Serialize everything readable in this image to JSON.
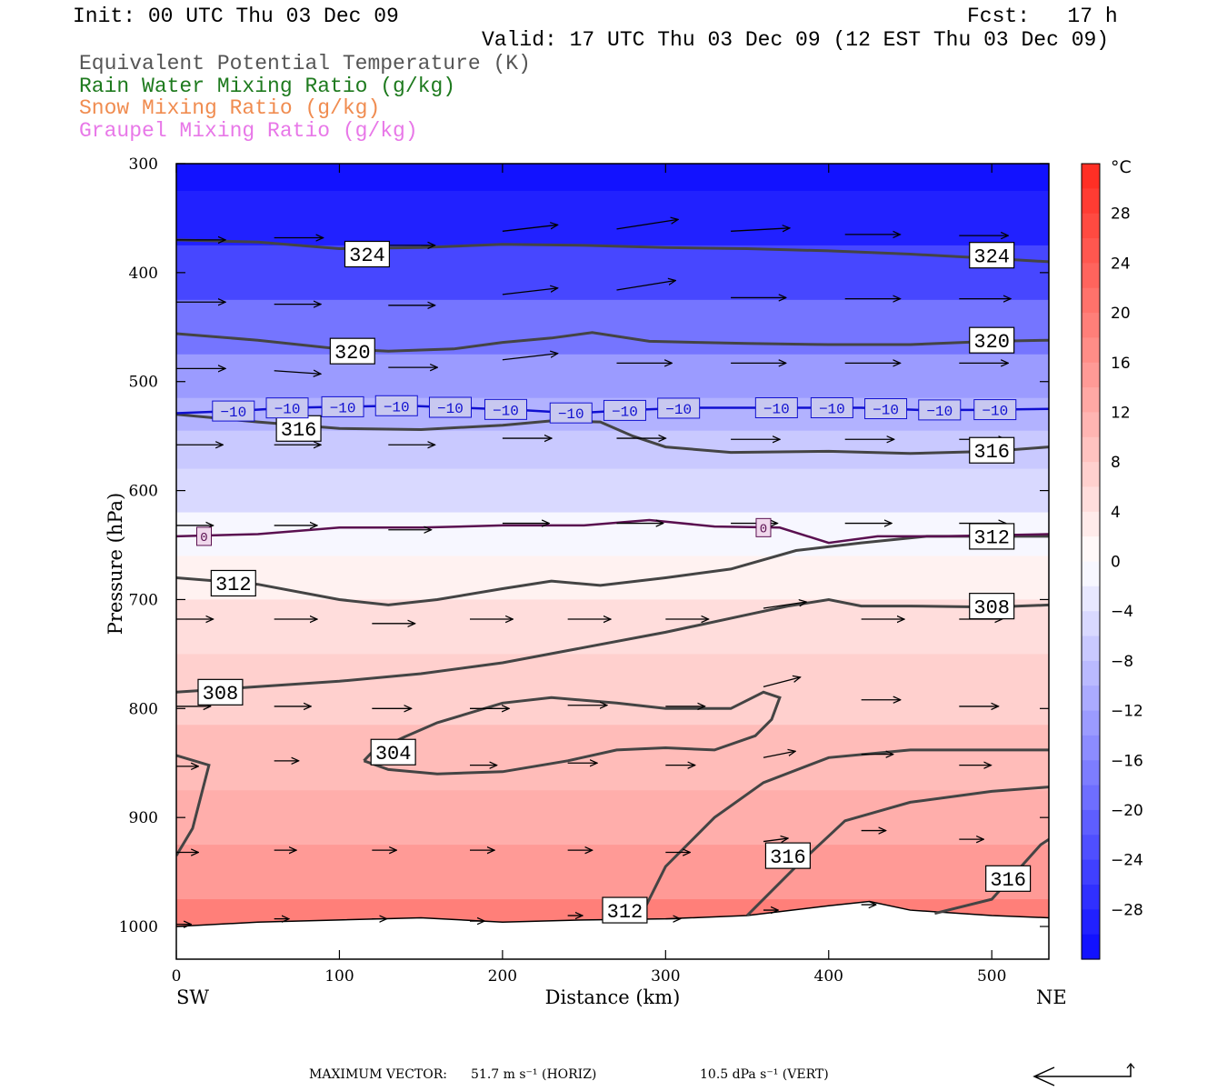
{
  "header": {
    "init": "Init: 00 UTC Thu 03 Dec 09",
    "fcst": "Fcst:   17 h",
    "valid": "Valid: 17 UTC Thu 03 Dec 09 (12 EST Thu 03 Dec 09)"
  },
  "legend": [
    {
      "label": "Equivalent Potential Temperature (K)",
      "color": "#555555"
    },
    {
      "label": "Rain Water Mixing Ratio (g/kg)",
      "color": "#1e7a1e"
    },
    {
      "label": "Snow Mixing Ratio (g/kg)",
      "color": "#f08c50"
    },
    {
      "label": "Graupel Mixing Ratio (g/kg)",
      "color": "#e878e8"
    }
  ],
  "chart_data": {
    "type": "contour",
    "xlabel": "Distance (km)",
    "ylabel": "Pressure (hPa)",
    "xlim": [
      0,
      535
    ],
    "ylim": [
      1030,
      300
    ],
    "x_ticks": [
      0,
      100,
      200,
      300,
      400,
      500
    ],
    "y_ticks": [
      300,
      400,
      500,
      600,
      700,
      800,
      900,
      1000
    ],
    "x_left_label": "SW",
    "x_right_label": "NE",
    "fill_variable_unit": "°C",
    "colorbar": {
      "min": -32,
      "max": 32,
      "ticks": [
        28,
        24,
        20,
        16,
        12,
        8,
        4,
        0,
        -4,
        -8,
        -12,
        -16,
        -20,
        -24,
        -28
      ]
    },
    "temperature_layers": [
      {
        "p": 300,
        "t": -31
      },
      {
        "p": 350,
        "t": -29
      },
      {
        "p": 400,
        "t": -24
      },
      {
        "p": 450,
        "t": -18
      },
      {
        "p": 500,
        "t": -13
      },
      {
        "p": 530,
        "t": -10
      },
      {
        "p": 560,
        "t": -7
      },
      {
        "p": 600,
        "t": -5
      },
      {
        "p": 640,
        "t": -1
      },
      {
        "p": 680,
        "t": 2
      },
      {
        "p": 720,
        "t": 5
      },
      {
        "p": 780,
        "t": 7
      },
      {
        "p": 850,
        "t": 10
      },
      {
        "p": 900,
        "t": 12
      },
      {
        "p": 950,
        "t": 15
      },
      {
        "p": 1000,
        "t": 19
      }
    ],
    "isotherm_labels": {
      "minus10": "−10",
      "zero": "0"
    },
    "minus10_isotherm": {
      "x": [
        0,
        35,
        70,
        105,
        140,
        175,
        210,
        245,
        280,
        315,
        350,
        385,
        420,
        455,
        490,
        535
      ],
      "p": [
        529,
        527,
        524,
        523,
        522,
        524,
        526,
        529,
        526,
        524,
        524,
        524,
        524,
        526,
        526,
        525
      ]
    },
    "zero_isotherm": {
      "x": [
        0,
        50,
        100,
        150,
        200,
        250,
        290,
        330,
        370,
        400,
        430,
        470,
        535
      ],
      "p": [
        642,
        640,
        634,
        634,
        632,
        632,
        627,
        633,
        634,
        648,
        642,
        642,
        640
      ]
    },
    "theta_e_contours": [
      {
        "label": "324",
        "x": [
          0,
          50,
          100,
          150,
          200,
          250,
          300,
          350,
          400,
          450,
          500,
          535
        ],
        "p": [
          370,
          372,
          378,
          377,
          374,
          375,
          377,
          378,
          380,
          383,
          387,
          390
        ]
      },
      {
        "label": "320",
        "x": [
          0,
          50,
          100,
          130,
          170,
          200,
          230,
          255,
          290,
          350,
          400,
          450,
          500,
          535
        ],
        "p": [
          456,
          462,
          470,
          472,
          470,
          464,
          460,
          455,
          463,
          465,
          466,
          466,
          463,
          462
        ]
      },
      {
        "label": "316",
        "x": [
          0,
          50,
          100,
          150,
          200,
          230,
          260,
          280,
          300,
          340,
          400,
          450,
          500,
          535
        ],
        "p": [
          530,
          537,
          543,
          544,
          540,
          536,
          537,
          550,
          560,
          565,
          564,
          566,
          564,
          560
        ]
      },
      {
        "label": "312",
        "x": [
          0,
          50,
          100,
          130,
          160,
          200,
          230,
          260,
          300,
          340,
          380,
          420,
          460,
          500,
          535
        ],
        "p": [
          680,
          686,
          700,
          705,
          700,
          690,
          683,
          687,
          680,
          672,
          655,
          648,
          642,
          642,
          642
        ]
      },
      {
        "label": "308",
        "x": [
          0,
          50,
          100,
          150,
          200,
          250,
          300,
          350,
          375,
          400,
          420,
          450,
          500,
          535
        ],
        "p": [
          785,
          780,
          775,
          768,
          758,
          744,
          730,
          714,
          706,
          700,
          706,
          706,
          707,
          705
        ]
      },
      {
        "label": "304",
        "x": [
          115,
          130,
          160,
          200,
          240,
          270,
          300,
          330,
          355,
          365,
          370,
          360,
          340,
          300,
          270,
          230,
          200,
          160,
          140,
          120,
          115
        ],
        "p": [
          848,
          856,
          860,
          858,
          848,
          838,
          836,
          838,
          825,
          810,
          790,
          785,
          800,
          800,
          795,
          790,
          795,
          813,
          826,
          840,
          848
        ]
      },
      {
        "label": "308",
        "x": [
          0,
          20,
          10,
          0
        ],
        "p": [
          843,
          852,
          910,
          935
        ]
      },
      {
        "label": "312",
        "x": [
          285,
          300,
          330,
          360,
          400,
          450,
          500,
          535
        ],
        "p": [
          990,
          945,
          900,
          868,
          845,
          838,
          838,
          838
        ]
      },
      {
        "label": "316",
        "x": [
          350,
          380,
          410,
          450,
          500,
          535
        ],
        "p": [
          990,
          945,
          903,
          886,
          876,
          872
        ]
      },
      {
        "label": "316",
        "x": [
          465,
          500,
          530,
          535
        ],
        "p": [
          988,
          975,
          925,
          920
        ]
      }
    ],
    "terrain": {
      "x": [
        0,
        50,
        100,
        150,
        200,
        250,
        300,
        350,
        400,
        425,
        450,
        500,
        535
      ],
      "p": [
        1000,
        996,
        994,
        992,
        996,
        994,
        993,
        990,
        981,
        977,
        985,
        990,
        992
      ]
    },
    "wind_vectors": [
      {
        "x": 0,
        "p": 370,
        "u": 40,
        "w": 0
      },
      {
        "x": 60,
        "p": 368,
        "u": 40,
        "w": 0
      },
      {
        "x": 130,
        "p": 375,
        "u": 38,
        "w": 0
      },
      {
        "x": 200,
        "p": 362,
        "u": 45,
        "w": 2
      },
      {
        "x": 270,
        "p": 360,
        "u": 50,
        "w": 3
      },
      {
        "x": 340,
        "p": 362,
        "u": 48,
        "w": 1
      },
      {
        "x": 410,
        "p": 365,
        "u": 45,
        "w": 0
      },
      {
        "x": 480,
        "p": 366,
        "u": 40,
        "w": 0
      },
      {
        "x": 0,
        "p": 427,
        "u": 40,
        "w": 0
      },
      {
        "x": 60,
        "p": 429,
        "u": 38,
        "w": 0
      },
      {
        "x": 130,
        "p": 430,
        "u": 38,
        "w": 0
      },
      {
        "x": 200,
        "p": 420,
        "u": 45,
        "w": 2
      },
      {
        "x": 270,
        "p": 416,
        "u": 48,
        "w": 3
      },
      {
        "x": 340,
        "p": 423,
        "u": 45,
        "w": 0
      },
      {
        "x": 410,
        "p": 424,
        "u": 45,
        "w": 0
      },
      {
        "x": 480,
        "p": 424,
        "u": 42,
        "w": 0
      },
      {
        "x": 0,
        "p": 488,
        "u": 40,
        "w": 0
      },
      {
        "x": 60,
        "p": 490,
        "u": 38,
        "w": -1
      },
      {
        "x": 130,
        "p": 487,
        "u": 40,
        "w": 0
      },
      {
        "x": 200,
        "p": 480,
        "u": 45,
        "w": 2
      },
      {
        "x": 270,
        "p": 483,
        "u": 45,
        "w": 0
      },
      {
        "x": 340,
        "p": 483,
        "u": 45,
        "w": 0
      },
      {
        "x": 410,
        "p": 483,
        "u": 45,
        "w": 0
      },
      {
        "x": 480,
        "p": 483,
        "u": 40,
        "w": 0
      },
      {
        "x": 0,
        "p": 558,
        "u": 38,
        "w": 0
      },
      {
        "x": 60,
        "p": 558,
        "u": 38,
        "w": 0
      },
      {
        "x": 130,
        "p": 558,
        "u": 38,
        "w": 0
      },
      {
        "x": 200,
        "p": 552,
        "u": 40,
        "w": 0
      },
      {
        "x": 270,
        "p": 552,
        "u": 40,
        "w": 0
      },
      {
        "x": 340,
        "p": 553,
        "u": 40,
        "w": 0
      },
      {
        "x": 410,
        "p": 553,
        "u": 40,
        "w": 0
      },
      {
        "x": 480,
        "p": 553,
        "u": 38,
        "w": 0
      },
      {
        "x": 0,
        "p": 632,
        "u": 30,
        "w": 0
      },
      {
        "x": 60,
        "p": 632,
        "u": 35,
        "w": 0
      },
      {
        "x": 130,
        "p": 636,
        "u": 35,
        "w": 0
      },
      {
        "x": 200,
        "p": 630,
        "u": 38,
        "w": 0
      },
      {
        "x": 270,
        "p": 630,
        "u": 38,
        "w": 0
      },
      {
        "x": 340,
        "p": 630,
        "u": 38,
        "w": 0
      },
      {
        "x": 410,
        "p": 630,
        "u": 38,
        "w": 0
      },
      {
        "x": 480,
        "p": 630,
        "u": 38,
        "w": 0
      },
      {
        "x": 0,
        "p": 718,
        "u": 30,
        "w": 0
      },
      {
        "x": 60,
        "p": 718,
        "u": 35,
        "w": 0
      },
      {
        "x": 120,
        "p": 722,
        "u": 35,
        "w": 0
      },
      {
        "x": 180,
        "p": 718,
        "u": 35,
        "w": 0
      },
      {
        "x": 240,
        "p": 718,
        "u": 35,
        "w": 0
      },
      {
        "x": 300,
        "p": 718,
        "u": 35,
        "w": 0
      },
      {
        "x": 360,
        "p": 708,
        "u": 35,
        "w": 2
      },
      {
        "x": 420,
        "p": 718,
        "u": 35,
        "w": 0
      },
      {
        "x": 480,
        "p": 718,
        "u": 35,
        "w": 0
      },
      {
        "x": 0,
        "p": 798,
        "u": 28,
        "w": 0
      },
      {
        "x": 60,
        "p": 798,
        "u": 30,
        "w": 0
      },
      {
        "x": 120,
        "p": 800,
        "u": 32,
        "w": 0
      },
      {
        "x": 180,
        "p": 800,
        "u": 32,
        "w": 0
      },
      {
        "x": 240,
        "p": 797,
        "u": 32,
        "w": 0
      },
      {
        "x": 300,
        "p": 798,
        "u": 32,
        "w": 0
      },
      {
        "x": 360,
        "p": 780,
        "u": 30,
        "w": 3
      },
      {
        "x": 420,
        "p": 792,
        "u": 32,
        "w": 0
      },
      {
        "x": 480,
        "p": 798,
        "u": 32,
        "w": 0
      },
      {
        "x": 0,
        "p": 853,
        "u": 18,
        "w": 0
      },
      {
        "x": 60,
        "p": 848,
        "u": 20,
        "w": 0
      },
      {
        "x": 120,
        "p": 848,
        "u": 22,
        "w": 0
      },
      {
        "x": 180,
        "p": 852,
        "u": 22,
        "w": 0
      },
      {
        "x": 240,
        "p": 850,
        "u": 24,
        "w": 0
      },
      {
        "x": 300,
        "p": 852,
        "u": 24,
        "w": 0
      },
      {
        "x": 360,
        "p": 845,
        "u": 26,
        "w": 2
      },
      {
        "x": 420,
        "p": 842,
        "u": 26,
        "w": 0
      },
      {
        "x": 480,
        "p": 852,
        "u": 26,
        "w": 0
      },
      {
        "x": 0,
        "p": 932,
        "u": 18,
        "w": 0
      },
      {
        "x": 60,
        "p": 930,
        "u": 18,
        "w": 0
      },
      {
        "x": 120,
        "p": 930,
        "u": 20,
        "w": 0
      },
      {
        "x": 180,
        "p": 930,
        "u": 20,
        "w": 0
      },
      {
        "x": 240,
        "p": 930,
        "u": 20,
        "w": 0
      },
      {
        "x": 300,
        "p": 932,
        "u": 20,
        "w": 0
      },
      {
        "x": 360,
        "p": 922,
        "u": 20,
        "w": 1
      },
      {
        "x": 420,
        "p": 912,
        "u": 20,
        "w": 0
      },
      {
        "x": 480,
        "p": 920,
        "u": 20,
        "w": 0
      },
      {
        "x": 0,
        "p": 998,
        "u": 12,
        "w": 0
      },
      {
        "x": 60,
        "p": 993,
        "u": 12,
        "w": 0
      },
      {
        "x": 120,
        "p": 993,
        "u": 12,
        "w": 0
      },
      {
        "x": 180,
        "p": 995,
        "u": 12,
        "w": 0
      },
      {
        "x": 240,
        "p": 990,
        "u": 12,
        "w": 0
      },
      {
        "x": 300,
        "p": 993,
        "u": 12,
        "w": 0
      },
      {
        "x": 360,
        "p": 985,
        "u": 12,
        "w": 0
      },
      {
        "x": 420,
        "p": 980,
        "u": 12,
        "w": 0
      }
    ]
  },
  "footer": {
    "max_vector_label": "MAXIMUM VECTOR:",
    "horiz": "51.7 m s⁻¹ (HORIZ)",
    "vert": "10.5 dPa s⁻¹ (VERT)"
  }
}
